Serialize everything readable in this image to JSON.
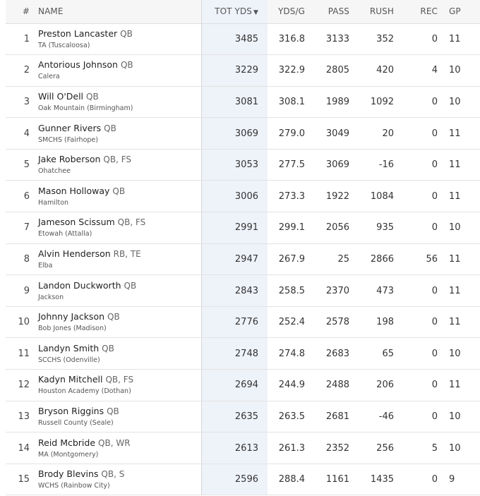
{
  "columns": {
    "rank": "#",
    "name": "NAME",
    "tot_yds": "TOT YDS",
    "sort_indicator": "▼",
    "yds_per_game": "YDS/G",
    "pass": "PASS",
    "rush": "RUSH",
    "rec": "REC",
    "gp": "GP"
  },
  "rows": [
    {
      "rank": "1",
      "name": "Preston Lancaster",
      "pos": "QB",
      "school": "TA (Tuscaloosa)",
      "tot": "3485",
      "ypg": "316.8",
      "pass": "3133",
      "rush": "352",
      "rec": "0",
      "gp": "11"
    },
    {
      "rank": "2",
      "name": "Antorious Johnson",
      "pos": "QB",
      "school": "Calera",
      "tot": "3229",
      "ypg": "322.9",
      "pass": "2805",
      "rush": "420",
      "rec": "4",
      "gp": "10"
    },
    {
      "rank": "3",
      "name": "Will O'Dell",
      "pos": "QB",
      "school": "Oak Mountain (Birmingham)",
      "tot": "3081",
      "ypg": "308.1",
      "pass": "1989",
      "rush": "1092",
      "rec": "0",
      "gp": "10"
    },
    {
      "rank": "4",
      "name": "Gunner Rivers",
      "pos": "QB",
      "school": "SMCHS (Fairhope)",
      "tot": "3069",
      "ypg": "279.0",
      "pass": "3049",
      "rush": "20",
      "rec": "0",
      "gp": "11"
    },
    {
      "rank": "5",
      "name": "Jake Roberson",
      "pos": "QB, FS",
      "school": "Ohatchee",
      "tot": "3053",
      "ypg": "277.5",
      "pass": "3069",
      "rush": "-16",
      "rec": "0",
      "gp": "11"
    },
    {
      "rank": "6",
      "name": "Mason Holloway",
      "pos": "QB",
      "school": "Hamilton",
      "tot": "3006",
      "ypg": "273.3",
      "pass": "1922",
      "rush": "1084",
      "rec": "0",
      "gp": "11"
    },
    {
      "rank": "7",
      "name": "Jameson Scissum",
      "pos": "QB, FS",
      "school": "Etowah (Attalla)",
      "tot": "2991",
      "ypg": "299.1",
      "pass": "2056",
      "rush": "935",
      "rec": "0",
      "gp": "10"
    },
    {
      "rank": "8",
      "name": "Alvin Henderson",
      "pos": "RB, TE",
      "school": "Elba",
      "tot": "2947",
      "ypg": "267.9",
      "pass": "25",
      "rush": "2866",
      "rec": "56",
      "gp": "11"
    },
    {
      "rank": "9",
      "name": "Landon Duckworth",
      "pos": "QB",
      "school": "Jackson",
      "tot": "2843",
      "ypg": "258.5",
      "pass": "2370",
      "rush": "473",
      "rec": "0",
      "gp": "11"
    },
    {
      "rank": "10",
      "name": "Johnny Jackson",
      "pos": "QB",
      "school": "Bob Jones (Madison)",
      "tot": "2776",
      "ypg": "252.4",
      "pass": "2578",
      "rush": "198",
      "rec": "0",
      "gp": "11"
    },
    {
      "rank": "11",
      "name": "Landyn Smith",
      "pos": "QB",
      "school": "SCCHS (Odenville)",
      "tot": "2748",
      "ypg": "274.8",
      "pass": "2683",
      "rush": "65",
      "rec": "0",
      "gp": "10"
    },
    {
      "rank": "12",
      "name": "Kadyn Mitchell",
      "pos": "QB, FS",
      "school": "Houston Academy (Dothan)",
      "tot": "2694",
      "ypg": "244.9",
      "pass": "2488",
      "rush": "206",
      "rec": "0",
      "gp": "11"
    },
    {
      "rank": "13",
      "name": "Bryson Riggins",
      "pos": "QB",
      "school": "Russell County (Seale)",
      "tot": "2635",
      "ypg": "263.5",
      "pass": "2681",
      "rush": "-46",
      "rec": "0",
      "gp": "10"
    },
    {
      "rank": "14",
      "name": "Reid Mcbride",
      "pos": "QB, WR",
      "school": "MA (Montgomery)",
      "tot": "2613",
      "ypg": "261.3",
      "pass": "2352",
      "rush": "256",
      "rec": "5",
      "gp": "10"
    },
    {
      "rank": "15",
      "name": "Brody Blevins",
      "pos": "QB, S",
      "school": "WCHS (Rainbow City)",
      "tot": "2596",
      "ypg": "288.4",
      "pass": "1161",
      "rush": "1435",
      "rec": "0",
      "gp": "9"
    }
  ]
}
